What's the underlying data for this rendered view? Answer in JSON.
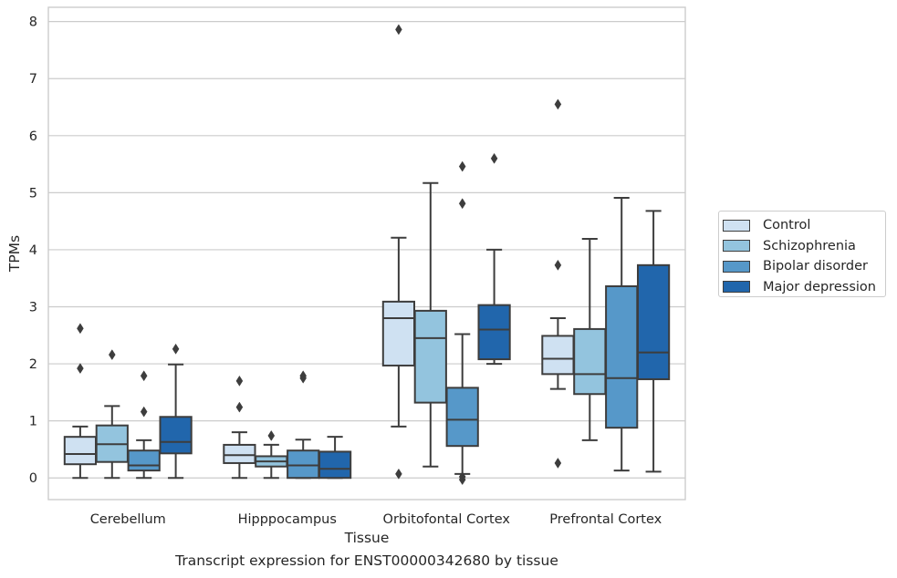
{
  "caption": "Transcript expression for ENST00000342680 by tissue",
  "chart_data": {
    "type": "box",
    "xlabel": "Tissue",
    "ylabel": "TPMs",
    "ylim": [
      -0.38,
      8.25
    ],
    "yticks": [
      0,
      1,
      2,
      3,
      4,
      5,
      6,
      7,
      8
    ],
    "grid": "horizontal",
    "legend_position": "right",
    "categories": [
      "Cerebellum",
      "Hipppocampus",
      "Orbitofontal Cortex",
      "Prefrontal Cortex"
    ],
    "series": [
      {
        "name": "Control",
        "color": "#cfe1f2",
        "boxes": [
          {
            "whislo": 0.0,
            "q1": 0.24,
            "med": 0.42,
            "q3": 0.72,
            "whishi": 0.9,
            "fliers": [
              2.62,
              1.92
            ]
          },
          {
            "whislo": 0.0,
            "q1": 0.26,
            "med": 0.4,
            "q3": 0.58,
            "whishi": 0.8,
            "fliers": [
              1.7,
              1.24
            ]
          },
          {
            "whislo": 0.9,
            "q1": 1.97,
            "med": 2.8,
            "q3": 3.09,
            "whishi": 4.21,
            "fliers": [
              7.86,
              0.07
            ]
          },
          {
            "whislo": 1.56,
            "q1": 1.82,
            "med": 2.09,
            "q3": 2.49,
            "whishi": 2.8,
            "fliers": [
              6.55,
              3.73,
              0.26
            ]
          }
        ]
      },
      {
        "name": "Schizophrenia",
        "color": "#93c4de",
        "boxes": [
          {
            "whislo": 0.0,
            "q1": 0.28,
            "med": 0.59,
            "q3": 0.92,
            "whishi": 1.26,
            "fliers": [
              2.16
            ]
          },
          {
            "whislo": 0.0,
            "q1": 0.2,
            "med": 0.29,
            "q3": 0.38,
            "whishi": 0.58,
            "fliers": [
              0.74
            ]
          },
          {
            "whislo": 0.2,
            "q1": 1.32,
            "med": 2.45,
            "q3": 2.93,
            "whishi": 5.17,
            "fliers": []
          },
          {
            "whislo": 0.66,
            "q1": 1.47,
            "med": 1.82,
            "q3": 2.61,
            "whishi": 4.19,
            "fliers": []
          }
        ]
      },
      {
        "name": "Bipolar disorder",
        "color": "#5698c9",
        "boxes": [
          {
            "whislo": 0.0,
            "q1": 0.13,
            "med": 0.22,
            "q3": 0.48,
            "whishi": 0.66,
            "fliers": [
              1.79,
              1.16
            ]
          },
          {
            "whislo": 0.0,
            "q1": 0.0,
            "med": 0.22,
            "q3": 0.48,
            "whishi": 0.67,
            "fliers": [
              1.79,
              1.75
            ]
          },
          {
            "whislo": 0.07,
            "q1": 0.56,
            "med": 1.02,
            "q3": 1.58,
            "whishi": 2.52,
            "fliers": [
              5.46,
              4.81,
              0.02,
              -0.03
            ]
          },
          {
            "whislo": 0.13,
            "q1": 0.88,
            "med": 1.75,
            "q3": 3.36,
            "whishi": 4.91,
            "fliers": []
          }
        ]
      },
      {
        "name": "Major depression",
        "color": "#2166ac",
        "boxes": [
          {
            "whislo": 0.0,
            "q1": 0.43,
            "med": 0.63,
            "q3": 1.07,
            "whishi": 1.99,
            "fliers": [
              2.26
            ]
          },
          {
            "whislo": 0.0,
            "q1": 0.0,
            "med": 0.16,
            "q3": 0.46,
            "whishi": 0.72,
            "fliers": []
          },
          {
            "whislo": 2.0,
            "q1": 2.08,
            "med": 2.6,
            "q3": 3.03,
            "whishi": 4.0,
            "fliers": [
              5.6
            ]
          },
          {
            "whislo": 0.11,
            "q1": 1.73,
            "med": 2.2,
            "q3": 3.73,
            "whishi": 4.68,
            "fliers": []
          }
        ]
      }
    ]
  }
}
